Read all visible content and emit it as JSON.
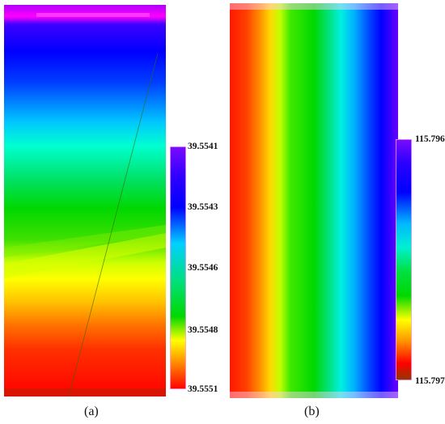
{
  "panels": [
    {
      "id": "a",
      "caption": "(a)",
      "colorbar_ticks": [
        "39.5541",
        "39.5543",
        "39.5546",
        "39.5548",
        "39.5551"
      ]
    },
    {
      "id": "b",
      "caption": "(b)",
      "colorbar_ticks": [
        "115.796",
        "115.797"
      ]
    }
  ],
  "colormap": {
    "max": "#7a0cff",
    "high": "#0000ff",
    "mid_high": "#00e5ff",
    "mid": "#00d800",
    "mid_low": "#ffff00",
    "low": "#ff8000",
    "min": "#ff0000",
    "floor": "#8b3a00"
  }
}
